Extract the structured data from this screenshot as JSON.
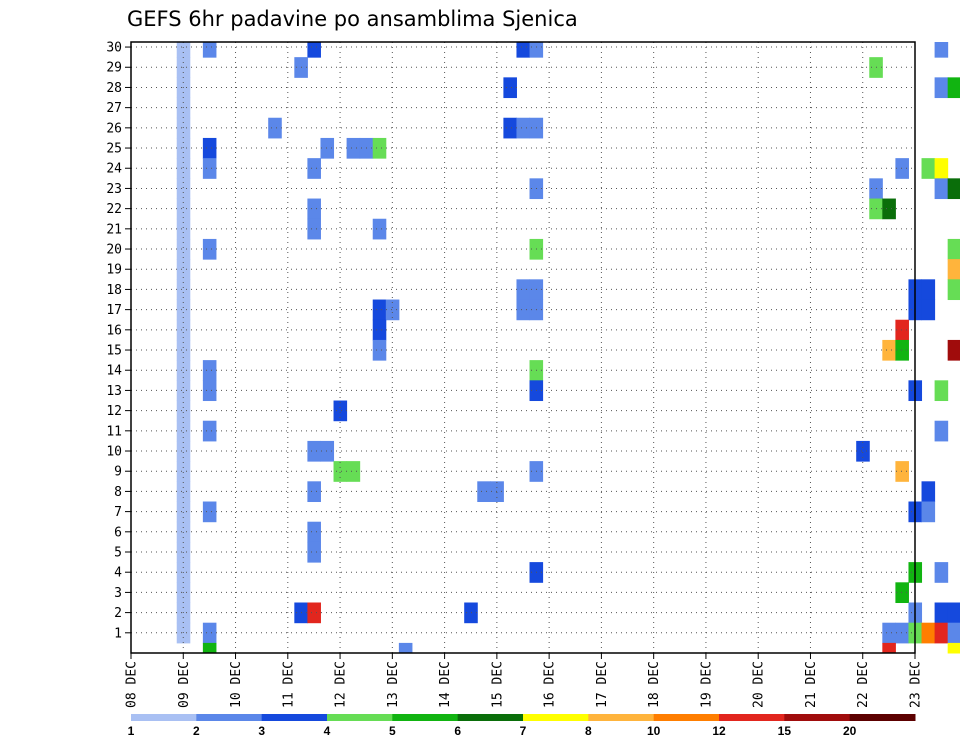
{
  "chart_data": {
    "type": "heatmap",
    "title": "GEFS 6hr padavine po ansamblima Sjenica",
    "xlabel": "",
    "ylabel": "",
    "x_tick_labels": [
      "08 DEC",
      "09 DEC",
      "10 DEC",
      "11 DEC",
      "12 DEC",
      "13 DEC",
      "14 DEC",
      "15 DEC",
      "16 DEC",
      "17 DEC",
      "18 DEC",
      "19 DEC",
      "20 DEC",
      "21 DEC",
      "22 DEC",
      "23 DEC"
    ],
    "y_tick_labels": [
      "1",
      "2",
      "3",
      "4",
      "5",
      "6",
      "7",
      "8",
      "9",
      "10",
      "11",
      "12",
      "13",
      "14",
      "15",
      "16",
      "17",
      "18",
      "19",
      "20",
      "21",
      "22",
      "23",
      "24",
      "25",
      "26",
      "27",
      "28",
      "29",
      "30"
    ],
    "xlim": [
      "08 DEC",
      "23 DEC"
    ],
    "ylim": [
      0,
      30
    ],
    "x_step_hours": 6,
    "grid": true,
    "colorbar": {
      "position": "bottom",
      "labels": [
        "1",
        "2",
        "3",
        "4",
        "5",
        "6",
        "7",
        "8",
        "10",
        "12",
        "15",
        "20"
      ],
      "colors": [
        "#a9c0f3",
        "#5b87e9",
        "#1549dd",
        "#66dd55",
        "#11b411",
        "#0a6e0a",
        "#ffff00",
        "#ffb43c",
        "#ff7e00",
        "#e2261e",
        "#a00c0c",
        "#5c0000"
      ]
    },
    "cells": [
      [
        1,
        0,
        30
      ],
      [
        1,
        0,
        29
      ],
      [
        1,
        0,
        28
      ],
      [
        1,
        0,
        27
      ],
      [
        1,
        0,
        26
      ],
      [
        1,
        0,
        25
      ],
      [
        1,
        0,
        24
      ],
      [
        1,
        0,
        23
      ],
      [
        1,
        0,
        22
      ],
      [
        1,
        0,
        21
      ],
      [
        1,
        0,
        20
      ],
      [
        1,
        0,
        19
      ],
      [
        1,
        0,
        18
      ],
      [
        1,
        0,
        17
      ],
      [
        1,
        0,
        16
      ],
      [
        1,
        0,
        15
      ],
      [
        1,
        0,
        14
      ],
      [
        1,
        0,
        13
      ],
      [
        1,
        0,
        12
      ],
      [
        1,
        0,
        11
      ],
      [
        1,
        0,
        10
      ],
      [
        1,
        0,
        9
      ],
      [
        1,
        0,
        8
      ],
      [
        1,
        0,
        7
      ],
      [
        1,
        0,
        6
      ],
      [
        1,
        0,
        5
      ],
      [
        1,
        0,
        4
      ],
      [
        1,
        0,
        3
      ],
      [
        1,
        0,
        2
      ],
      [
        1,
        0,
        1
      ],
      [
        1.5,
        1,
        30
      ],
      [
        3.5,
        2,
        30
      ],
      [
        7.5,
        2,
        30
      ],
      [
        7.75,
        1,
        30
      ],
      [
        15.5,
        1,
        30
      ],
      [
        3.25,
        1,
        29
      ],
      [
        14.25,
        3,
        29
      ],
      [
        27.5,
        4,
        29
      ],
      [
        7.25,
        2,
        28
      ],
      [
        15.5,
        1,
        28
      ],
      [
        15.75,
        4,
        28
      ],
      [
        18.75,
        3,
        28
      ],
      [
        19,
        2,
        28
      ],
      [
        19.5,
        3,
        28
      ],
      [
        20,
        6,
        28
      ],
      [
        20.25,
        9,
        28
      ],
      [
        20.5,
        8,
        28
      ],
      [
        20.75,
        6,
        28
      ],
      [
        21,
        5,
        28
      ],
      [
        21.25,
        6,
        28
      ],
      [
        21.5,
        6,
        28
      ],
      [
        21.75,
        3,
        28
      ],
      [
        17.5,
        1,
        27
      ],
      [
        18.25,
        5,
        27
      ],
      [
        18.5,
        7,
        27
      ],
      [
        18.75,
        1,
        27
      ],
      [
        26.25,
        1,
        27
      ],
      [
        2.75,
        1,
        26
      ],
      [
        7.25,
        2,
        26
      ],
      [
        7.5,
        1,
        26
      ],
      [
        7.75,
        1,
        26
      ],
      [
        18.5,
        4,
        26
      ],
      [
        18.75,
        2,
        26
      ],
      [
        25.0,
        2,
        26
      ],
      [
        25.5,
        1,
        26
      ],
      [
        25.75,
        6,
        26
      ],
      [
        26,
        6,
        26
      ],
      [
        26.25,
        2,
        26
      ],
      [
        26.5,
        2,
        26
      ],
      [
        26.75,
        1,
        26
      ],
      [
        27,
        1,
        26
      ],
      [
        1.5,
        2,
        25
      ],
      [
        3.75,
        1,
        25
      ],
      [
        4.25,
        1,
        25
      ],
      [
        4.5,
        1,
        25
      ],
      [
        4.75,
        3,
        25
      ],
      [
        16,
        1,
        25
      ],
      [
        26.0,
        4,
        25
      ],
      [
        26.25,
        3,
        25
      ],
      [
        26.5,
        6,
        25
      ],
      [
        26.75,
        9,
        25
      ],
      [
        27,
        10,
        25
      ],
      [
        27.25,
        11,
        25
      ],
      [
        27.5,
        12,
        25
      ],
      [
        27.75,
        10,
        25
      ],
      [
        28,
        9,
        25
      ],
      [
        28.25,
        10,
        25
      ],
      [
        28.5,
        9,
        25
      ],
      [
        1.5,
        1,
        24
      ],
      [
        3.5,
        1,
        24
      ],
      [
        14.75,
        1,
        24
      ],
      [
        15.25,
        3,
        24
      ],
      [
        15.5,
        6,
        24
      ],
      [
        18.75,
        8,
        24
      ],
      [
        22.75,
        1,
        24
      ],
      [
        23,
        2,
        24
      ],
      [
        23.25,
        1,
        24
      ],
      [
        7.75,
        1,
        23
      ],
      [
        14.25,
        1,
        23
      ],
      [
        15.5,
        1,
        23
      ],
      [
        15.75,
        5,
        23
      ],
      [
        21.5,
        1,
        23
      ],
      [
        21.75,
        2,
        23
      ],
      [
        22,
        1,
        23
      ],
      [
        22.5,
        1,
        23
      ],
      [
        3.5,
        1,
        22
      ],
      [
        14.25,
        3,
        22
      ],
      [
        14.5,
        5,
        22
      ],
      [
        23,
        1,
        22
      ],
      [
        23.5,
        1,
        22
      ],
      [
        3.5,
        1,
        21
      ],
      [
        4.75,
        1,
        21
      ],
      [
        19.25,
        2,
        21
      ],
      [
        22.5,
        1,
        21
      ],
      [
        22.75,
        7,
        21
      ],
      [
        23.25,
        3,
        21
      ],
      [
        23.5,
        3,
        21
      ],
      [
        23.75,
        3,
        21
      ],
      [
        24,
        3,
        21
      ],
      [
        24.25,
        1,
        21
      ],
      [
        1.5,
        1,
        20
      ],
      [
        7.75,
        3,
        20
      ],
      [
        15.75,
        3,
        20
      ],
      [
        16,
        2,
        20
      ],
      [
        16,
        4,
        19
      ],
      [
        15.75,
        7,
        19
      ],
      [
        30,
        1,
        19
      ],
      [
        7.5,
        1,
        18
      ],
      [
        7.75,
        1,
        18
      ],
      [
        15,
        2,
        18
      ],
      [
        15.25,
        2,
        18
      ],
      [
        15.75,
        3,
        18
      ],
      [
        24.25,
        1,
        18
      ],
      [
        25.25,
        1,
        18
      ],
      [
        25.5,
        1,
        18
      ],
      [
        4.75,
        2,
        17
      ],
      [
        5,
        1,
        17
      ],
      [
        7.5,
        1,
        17
      ],
      [
        7.75,
        1,
        17
      ],
      [
        15,
        2,
        17
      ],
      [
        15.25,
        2,
        17
      ],
      [
        23.25,
        1,
        17
      ],
      [
        4.75,
        2,
        16
      ],
      [
        14.75,
        9,
        16
      ],
      [
        22.5,
        1,
        16
      ],
      [
        22.75,
        9,
        16
      ],
      [
        23,
        4,
        16
      ],
      [
        23.25,
        2,
        16
      ],
      [
        25.25,
        1,
        16
      ],
      [
        25.5,
        1,
        16
      ],
      [
        25.75,
        1,
        16
      ],
      [
        26.5,
        5,
        16
      ],
      [
        26.75,
        8,
        16
      ],
      [
        4.75,
        1,
        15
      ],
      [
        14.5,
        7,
        15
      ],
      [
        14.75,
        4,
        15
      ],
      [
        15.75,
        10,
        15
      ],
      [
        16,
        1,
        15
      ],
      [
        25.25,
        1,
        15
      ],
      [
        25.5,
        1,
        15
      ],
      [
        25.75,
        1,
        15
      ],
      [
        26.5,
        5,
        15
      ],
      [
        26.75,
        8,
        15
      ],
      [
        1.5,
        1,
        14
      ],
      [
        7.75,
        3,
        14
      ],
      [
        23,
        1,
        14
      ],
      [
        1.5,
        1,
        13
      ],
      [
        7.75,
        2,
        13
      ],
      [
        15,
        2,
        13
      ],
      [
        15.5,
        3,
        13
      ],
      [
        4,
        2,
        12
      ],
      [
        24,
        2,
        12
      ],
      [
        24.25,
        6,
        12
      ],
      [
        24.5,
        2,
        12
      ],
      [
        24.75,
        3,
        12
      ],
      [
        26.5,
        1,
        12
      ],
      [
        27.25,
        2,
        12
      ],
      [
        1.5,
        1,
        11
      ],
      [
        15.5,
        1,
        11
      ],
      [
        16,
        4,
        11
      ],
      [
        20,
        2,
        11
      ],
      [
        20.25,
        2,
        11
      ],
      [
        20.5,
        9,
        11
      ],
      [
        20.75,
        8,
        11
      ],
      [
        21,
        1,
        11
      ],
      [
        21.25,
        2,
        11
      ],
      [
        21.5,
        2,
        11
      ],
      [
        23.25,
        3,
        11
      ],
      [
        23.5,
        4,
        11
      ],
      [
        23.75,
        4,
        11
      ],
      [
        3.5,
        1,
        10
      ],
      [
        3.75,
        1,
        10
      ],
      [
        14,
        2,
        10
      ],
      [
        18.5,
        3,
        10
      ],
      [
        18.75,
        5,
        10
      ],
      [
        24,
        2,
        10
      ],
      [
        24.25,
        2,
        10
      ],
      [
        24.5,
        4,
        10
      ],
      [
        24.75,
        5,
        10
      ],
      [
        25,
        7,
        10
      ],
      [
        25.25,
        5,
        10
      ],
      [
        25.5,
        1,
        10
      ],
      [
        4,
        3,
        9
      ],
      [
        4.25,
        3,
        9
      ],
      [
        7.75,
        1,
        9
      ],
      [
        14.75,
        7,
        9
      ],
      [
        18.5,
        2,
        9
      ],
      [
        18.75,
        1,
        9
      ],
      [
        19,
        1,
        9
      ],
      [
        19.25,
        1,
        9
      ],
      [
        3.5,
        1,
        8
      ],
      [
        6.75,
        1,
        8
      ],
      [
        7,
        1,
        8
      ],
      [
        15.25,
        2,
        8
      ],
      [
        18.75,
        5,
        8
      ],
      [
        1.5,
        1,
        7
      ],
      [
        15,
        2,
        7
      ],
      [
        15.25,
        1,
        7
      ],
      [
        3.5,
        1,
        6
      ],
      [
        27,
        3,
        6
      ],
      [
        27.5,
        2,
        6
      ],
      [
        27.75,
        1,
        6
      ],
      [
        3.5,
        1,
        5
      ],
      [
        20.5,
        1,
        5
      ],
      [
        21.25,
        1,
        5
      ],
      [
        21.5,
        1,
        5
      ],
      [
        21.75,
        1,
        5
      ],
      [
        22.5,
        2,
        5
      ],
      [
        24.5,
        1,
        5
      ],
      [
        26.75,
        2,
        5
      ],
      [
        27,
        11,
        5
      ],
      [
        27.25,
        5,
        5
      ],
      [
        27.5,
        3,
        5
      ],
      [
        27.75,
        5,
        5
      ],
      [
        7.75,
        2,
        4
      ],
      [
        15,
        4,
        4
      ],
      [
        15.5,
        1,
        4
      ],
      [
        18.5,
        1,
        4
      ],
      [
        18.75,
        5,
        4
      ],
      [
        19,
        3,
        4
      ],
      [
        26.5,
        5,
        4
      ],
      [
        26.75,
        9,
        4
      ],
      [
        27,
        4,
        4
      ],
      [
        27.25,
        1,
        4
      ],
      [
        14.75,
        4,
        3
      ],
      [
        18.25,
        3,
        3
      ],
      [
        25,
        2,
        3
      ],
      [
        25.25,
        11,
        3
      ],
      [
        25.5,
        10,
        3
      ],
      [
        25.75,
        11,
        3
      ],
      [
        26,
        9,
        3
      ],
      [
        26.25,
        7,
        3
      ],
      [
        26.5,
        7,
        3
      ],
      [
        27,
        3,
        3
      ],
      [
        3.25,
        2,
        2
      ],
      [
        3.5,
        9,
        2
      ],
      [
        6.5,
        2,
        2
      ],
      [
        15,
        1,
        2
      ],
      [
        15.5,
        2,
        2
      ],
      [
        15.75,
        2,
        2
      ],
      [
        16,
        6,
        2
      ],
      [
        16.25,
        1,
        2
      ],
      [
        16.5,
        1,
        2
      ],
      [
        16.75,
        4,
        2
      ],
      [
        17,
        1,
        2
      ],
      [
        21.5,
        2,
        2
      ],
      [
        21.75,
        3,
        2
      ],
      [
        22,
        1,
        2
      ],
      [
        1.5,
        1,
        1
      ],
      [
        14.5,
        1,
        1
      ],
      [
        14.75,
        1,
        1
      ],
      [
        15,
        3,
        1
      ],
      [
        15.25,
        8,
        1
      ],
      [
        15.5,
        9,
        1
      ],
      [
        15.75,
        1,
        1
      ],
      [
        16,
        2,
        1
      ],
      [
        26.5,
        5,
        1
      ],
      [
        26.75,
        2,
        1
      ],
      [
        27,
        2,
        1
      ],
      [
        27.25,
        2,
        1
      ],
      [
        1.5,
        4,
        0
      ],
      [
        5.25,
        1,
        0
      ],
      [
        14.5,
        9,
        0
      ],
      [
        15.75,
        6,
        0
      ],
      [
        16,
        2,
        0
      ],
      [
        24,
        2,
        0
      ],
      [
        24.25,
        3,
        0
      ]
    ]
  }
}
